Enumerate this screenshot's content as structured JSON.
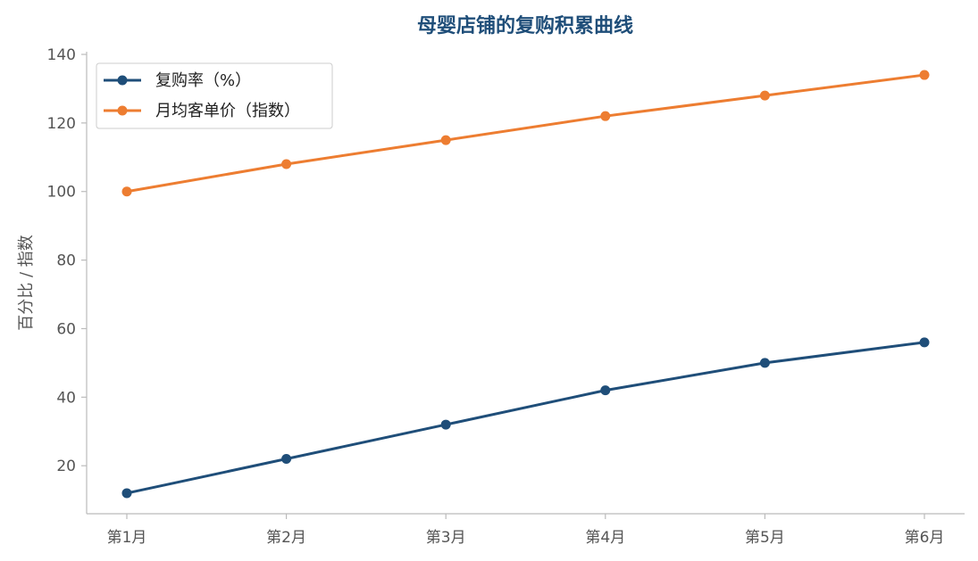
{
  "chart_data": {
    "type": "line",
    "title": "母婴店铺的复购积累曲线",
    "xlabel": "",
    "ylabel": "百分比 / 指数",
    "categories": [
      "第1月",
      "第2月",
      "第3月",
      "第4月",
      "第5月",
      "第6月"
    ],
    "series": [
      {
        "name": "复购率（%）",
        "values": [
          12,
          22,
          32,
          42,
          50,
          56
        ],
        "color": "#1f4e79"
      },
      {
        "name": "月均客单价（指数）",
        "values": [
          100,
          108,
          115,
          122,
          128,
          134
        ],
        "color": "#ed7d31"
      }
    ],
    "ylim": [
      6,
      140
    ],
    "yticks": [
      20,
      40,
      60,
      80,
      100,
      120,
      140
    ],
    "grid": false,
    "legend_position": "top-left"
  }
}
